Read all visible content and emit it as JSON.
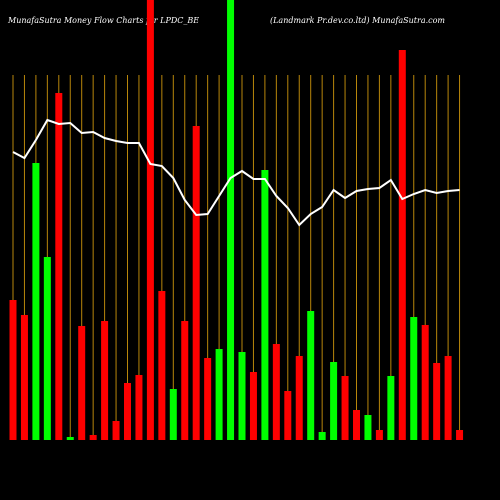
{
  "chart_data": {
    "type": "bar",
    "title": "MunafaSutra  Money Flow  Charts for LPDC_BE",
    "subtitle": "(Landmark Pr.dev.co.ltd) MunafaSutra.com",
    "grid": true,
    "grid_color": "#b8860b",
    "background": "#000000",
    "ylim": [
      0,
      440
    ],
    "bars": {
      "values": [
        140,
        125,
        277,
        183,
        347,
        3,
        114,
        5,
        119,
        19,
        57,
        65,
        440,
        149,
        51,
        119,
        314,
        82,
        91,
        440,
        88,
        68,
        270,
        96,
        49,
        84,
        129,
        8,
        78,
        64,
        30,
        25,
        10,
        64,
        390,
        123,
        115,
        77,
        84,
        10
      ],
      "colors": [
        "#ff0000",
        "#ff0000",
        "#00ff00",
        "#00ff00",
        "#ff0000",
        "#00ff00",
        "#ff0000",
        "#ff0000",
        "#ff0000",
        "#ff0000",
        "#ff0000",
        "#ff0000",
        "#ff0000",
        "#ff0000",
        "#00ff00",
        "#ff0000",
        "#ff0000",
        "#ff0000",
        "#00ff00",
        "#00ff00",
        "#00ff00",
        "#ff0000",
        "#00ff00",
        "#ff0000",
        "#ff0000",
        "#ff0000",
        "#00ff00",
        "#00ff00",
        "#00ff00",
        "#ff0000",
        "#ff0000",
        "#00ff00",
        "#ff0000",
        "#00ff00",
        "#ff0000",
        "#00ff00",
        "#ff0000",
        "#ff0000",
        "#ff0000",
        "#ff0000"
      ]
    },
    "line": {
      "color": "#ffffff",
      "values": [
        288,
        282,
        300,
        320,
        316,
        317,
        307,
        308,
        302,
        299,
        297,
        297,
        276,
        274,
        262,
        240,
        225,
        226,
        244,
        262,
        269,
        261,
        261,
        244,
        232,
        215,
        226,
        233,
        250,
        242,
        249,
        251,
        252,
        260,
        241,
        246,
        250,
        247,
        249,
        250
      ]
    }
  }
}
